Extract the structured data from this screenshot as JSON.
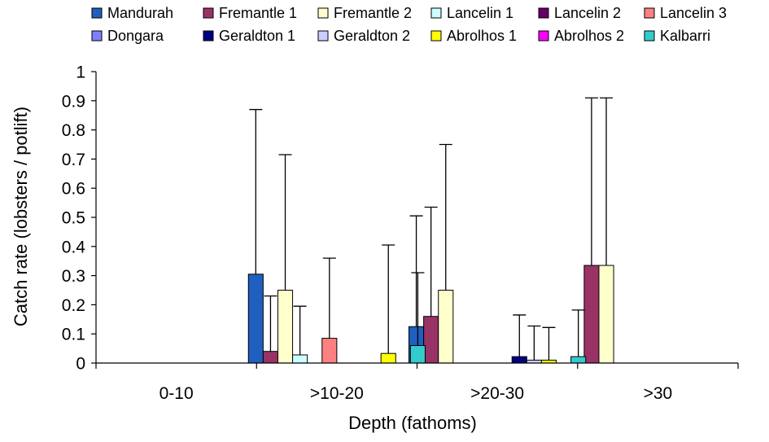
{
  "chart_data": {
    "type": "bar",
    "title": "",
    "xlabel": "Depth (fathoms)",
    "ylabel": "Catch rate (lobsters / potlift)",
    "ylim": [
      0,
      1
    ],
    "yticks": [
      0,
      0.1,
      0.2,
      0.3,
      0.4,
      0.5,
      0.6,
      0.7,
      0.8,
      0.9,
      1
    ],
    "ytick_labels": [
      "0",
      "0.1",
      "0.2",
      "0.3",
      "0.4",
      "0.5",
      "0.6",
      "0.7",
      "0.8",
      "0.9",
      "1"
    ],
    "grid": false,
    "legend_position": "top",
    "error_bars": "upper",
    "categories": [
      "0-10",
      ">10-20",
      ">20-30",
      ">30"
    ],
    "series": [
      {
        "name": "Mandurah",
        "color": "#1f5fbf",
        "values": [
          0,
          0.305,
          0.125,
          0
        ],
        "errors": [
          0,
          0.565,
          0.38,
          0
        ]
      },
      {
        "name": "Fremantle 1",
        "color": "#993366",
        "values": [
          0,
          0.04,
          0.16,
          0.335
        ],
        "errors": [
          0,
          0.19,
          0.375,
          0.575
        ]
      },
      {
        "name": "Fremantle 2",
        "color": "#ffffcc",
        "values": [
          0,
          0.25,
          0.25,
          0.335
        ],
        "errors": [
          0,
          0.465,
          0.5,
          0.575
        ]
      },
      {
        "name": "Lancelin 1",
        "color": "#ccffff",
        "values": [
          0,
          0.028,
          0,
          0
        ],
        "errors": [
          0,
          0.167,
          0,
          0
        ]
      },
      {
        "name": "Lancelin 2",
        "color": "#660066",
        "values": [
          0,
          0,
          0,
          0
        ],
        "errors": [
          0,
          0,
          0,
          0
        ]
      },
      {
        "name": "Lancelin 3",
        "color": "#ff8080",
        "values": [
          0,
          0.085,
          0,
          0
        ],
        "errors": [
          0,
          0.275,
          0,
          0
        ]
      },
      {
        "name": "Dongara",
        "color": "#8080ff",
        "values": [
          0,
          0,
          0,
          0
        ],
        "errors": [
          0,
          0,
          0,
          0
        ]
      },
      {
        "name": "Geraldton 1",
        "color": "#000080",
        "values": [
          0,
          0,
          0.022,
          0
        ],
        "errors": [
          0,
          0,
          0.143,
          0
        ]
      },
      {
        "name": "Geraldton 2",
        "color": "#ccccff",
        "values": [
          0,
          0,
          0.01,
          0
        ],
        "errors": [
          0,
          0,
          0.117,
          0
        ]
      },
      {
        "name": "Abrolhos 1",
        "color": "#ffff00",
        "values": [
          0,
          0.033,
          0.01,
          0
        ],
        "errors": [
          0,
          0.372,
          0.112,
          0
        ]
      },
      {
        "name": "Abrolhos 2",
        "color": "#ff00ff",
        "values": [
          0,
          0,
          0,
          0
        ],
        "errors": [
          0,
          0,
          0,
          0
        ]
      },
      {
        "name": "Kalbarri",
        "color": "#33cccc",
        "values": [
          0,
          0.06,
          0.022,
          0
        ],
        "errors": [
          0,
          0.25,
          0.16,
          0
        ]
      }
    ]
  }
}
